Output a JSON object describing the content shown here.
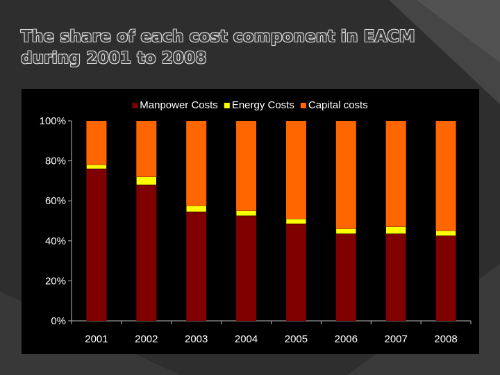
{
  "slide": {
    "title_line1": "The share of each cost component in EACM",
    "title_line2": "during 2001 to 2008"
  },
  "chart_data": {
    "type": "bar",
    "stacked": true,
    "percent_scale": true,
    "categories": [
      "2001",
      "2002",
      "2003",
      "2004",
      "2005",
      "2006",
      "2007",
      "2008"
    ],
    "series": [
      {
        "name": "Manpower Costs",
        "color": "#800000",
        "values": [
          76,
          68,
          54.5,
          52.5,
          48.5,
          43.5,
          43.5,
          42.5
        ]
      },
      {
        "name": "Energy Costs",
        "color": "#ffff00",
        "values": [
          2,
          4,
          3,
          2.5,
          2.5,
          2.5,
          3.5,
          2.5
        ]
      },
      {
        "name": "Capital costs",
        "color": "#ff6600",
        "values": [
          22,
          28,
          42.5,
          45,
          49,
          54,
          53,
          55
        ]
      }
    ],
    "yticks": [
      "0%",
      "20%",
      "40%",
      "60%",
      "80%",
      "100%"
    ],
    "ylim": [
      0,
      100
    ],
    "legend": "top",
    "grid": false,
    "background": "#000000"
  }
}
